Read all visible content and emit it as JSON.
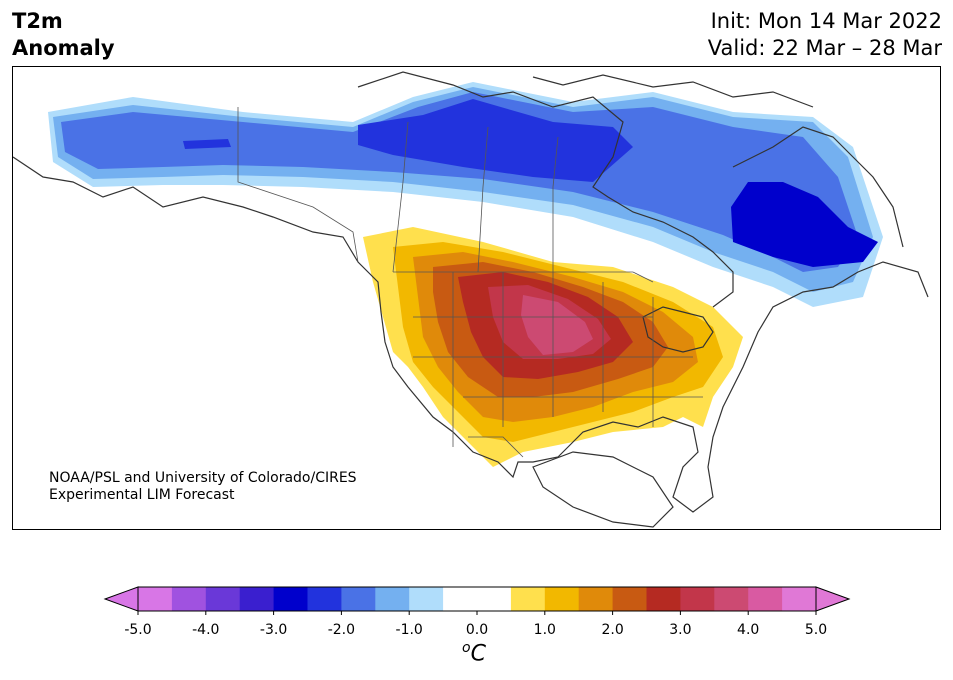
{
  "header": {
    "variable_line1": "T2m",
    "variable_line2": "Anomaly",
    "init": "Init: Mon 14 Mar 2022",
    "valid": "Valid: 22 Mar – 28 Mar"
  },
  "credit": {
    "line1": "NOAA/PSL and University of Colorado/CIRES",
    "line2": "Experimental LIM Forecast"
  },
  "colorbar": {
    "ticks": [
      "-5.0",
      "-4.0",
      "-3.0",
      "-2.0",
      "-1.0",
      "0.0",
      "1.0",
      "2.0",
      "3.0",
      "4.0",
      "5.0"
    ],
    "unit_symbol": "o",
    "unit_letter": "C",
    "colors": [
      "#d876e6",
      "#a052e0",
      "#6a38d8",
      "#3a1fcf",
      "#0000cc",
      "#2233dd",
      "#4a72e6",
      "#74b0f0",
      "#b0ddfb",
      "#ffffff",
      "#ffffff",
      "#ffe04d",
      "#f2b800",
      "#e08a0a",
      "#c85a12",
      "#b52a22",
      "#c2364a",
      "#cc4a72",
      "#d95aa2",
      "#e078d6"
    ],
    "extend_low": "#d876e6",
    "extend_high": "#e078d6"
  }
}
